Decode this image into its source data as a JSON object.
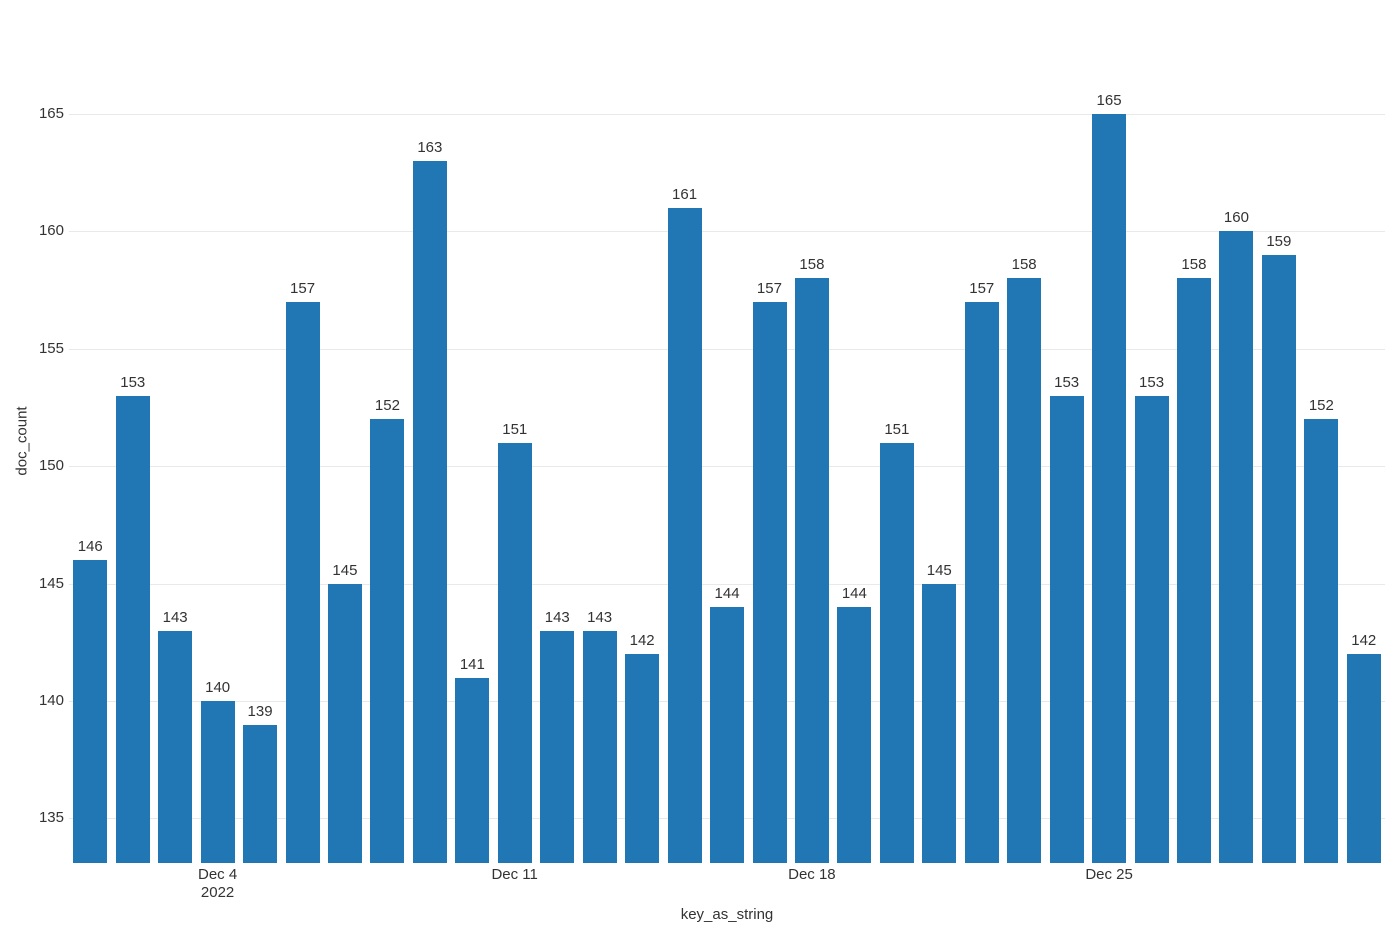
{
  "chart": {
    "ylabel": "doc_count",
    "xlabel": "key_as_string",
    "colors": {
      "bar": "#2077b4",
      "grid": "#e9e9e9",
      "text": "#333333",
      "background": "#ffffff"
    }
  },
  "chart_data": {
    "type": "bar",
    "title": "",
    "xlabel": "key_as_string",
    "ylabel": "doc_count",
    "values": [
      146,
      153,
      143,
      140,
      139,
      157,
      145,
      152,
      163,
      141,
      151,
      143,
      143,
      142,
      161,
      144,
      157,
      158,
      144,
      151,
      145,
      157,
      158,
      153,
      165,
      153,
      158,
      160,
      159,
      152,
      142
    ],
    "value_labels_shown": true,
    "y_ticks": [
      135,
      140,
      145,
      150,
      155,
      160,
      165
    ],
    "x_ticks": [
      {
        "bar_index": 3,
        "lines": [
          "Dec 4",
          "2022"
        ]
      },
      {
        "bar_index": 10,
        "lines": [
          "Dec 11"
        ]
      },
      {
        "bar_index": 17,
        "lines": [
          "Dec 18"
        ]
      },
      {
        "bar_index": 24,
        "lines": [
          "Dec 25"
        ]
      }
    ],
    "ylim": [
      133.1,
      169.0
    ],
    "grid": true,
    "legend": false,
    "bar_color": "#2077b4"
  }
}
